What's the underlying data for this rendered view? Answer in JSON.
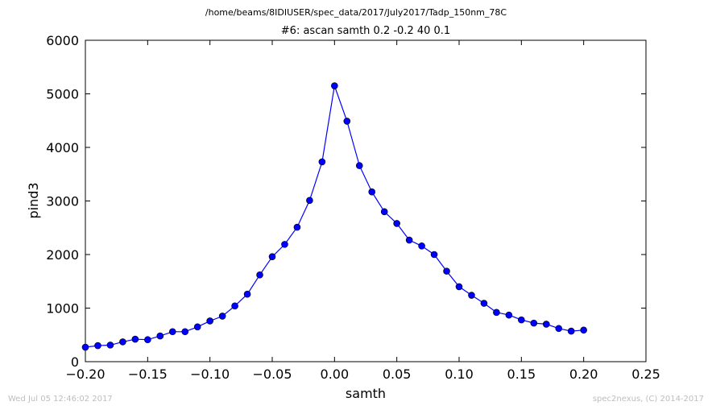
{
  "chart_data": {
    "type": "line",
    "suptitle": "/home/beams/8IDIUSER/spec_data/2017/July2017/Tadp_150nm_78C",
    "title": "#6: ascan  samth 0.2 -0.2  40 0.1",
    "xlabel": "samth",
    "ylabel": "pind3",
    "xlim": [
      -0.2,
      0.25
    ],
    "ylim": [
      0,
      6000
    ],
    "xticks": [
      -0.2,
      -0.15,
      -0.1,
      -0.05,
      0.0,
      0.05,
      0.1,
      0.15,
      0.2,
      0.25
    ],
    "xtick_labels": [
      "−0.20",
      "−0.15",
      "−0.10",
      "−0.05",
      "0.00",
      "0.05",
      "0.10",
      "0.15",
      "0.20",
      "0.25"
    ],
    "yticks": [
      0,
      1000,
      2000,
      3000,
      4000,
      5000,
      6000
    ],
    "ytick_labels": [
      "0",
      "1000",
      "2000",
      "3000",
      "4000",
      "5000",
      "6000"
    ],
    "grid": false,
    "color": "#0000ff",
    "x": [
      -0.2,
      -0.19,
      -0.18,
      -0.17,
      -0.16,
      -0.15,
      -0.14,
      -0.13,
      -0.12,
      -0.11,
      -0.1,
      -0.09,
      -0.08,
      -0.07,
      -0.06,
      -0.05,
      -0.04,
      -0.03,
      -0.02,
      -0.01,
      0.0,
      0.01,
      0.02,
      0.03,
      0.04,
      0.05,
      0.06,
      0.07,
      0.08,
      0.09,
      0.1,
      0.11,
      0.12,
      0.13,
      0.14,
      0.15,
      0.16,
      0.17,
      0.18,
      0.19,
      0.2
    ],
    "y": [
      270,
      300,
      310,
      370,
      420,
      410,
      480,
      560,
      560,
      650,
      760,
      850,
      1040,
      1260,
      1620,
      1960,
      2190,
      2510,
      3010,
      3730,
      5150,
      4490,
      3660,
      3170,
      2800,
      2580,
      2270,
      2160,
      2000,
      1690,
      1400,
      1240,
      1090,
      920,
      870,
      780,
      720,
      700,
      620,
      570,
      590
    ]
  },
  "footer": {
    "timestamp": "Wed Jul 05 12:46:02 2017",
    "credit": "spec2nexus, (C) 2014-2017"
  }
}
